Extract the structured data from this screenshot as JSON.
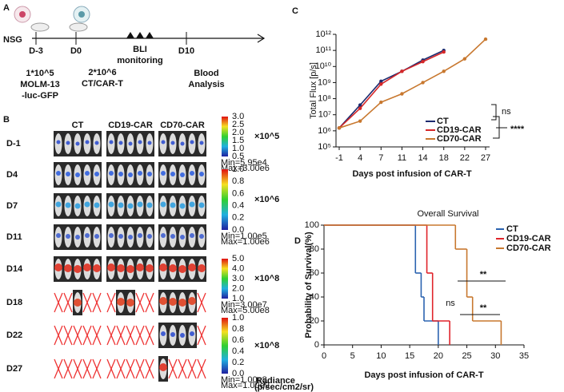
{
  "panel_a": {
    "label": "A",
    "strain": "NSG",
    "timepoints": [
      "D-3",
      "D0",
      "D10"
    ],
    "bli": "BLI",
    "monitoring": "monitoring",
    "tumor": [
      "1*10^5",
      "MOLM-13",
      "-luc-GFP"
    ],
    "cells": [
      "2*10^6",
      "CT/CAR-T"
    ],
    "endpoint": [
      "Blood",
      "Analysis"
    ]
  },
  "panel_b": {
    "label": "B",
    "groups": [
      "CT",
      "CD19-CAR",
      "CD70-CAR"
    ],
    "days": [
      "D-1",
      "D4",
      "D7",
      "D11",
      "D14",
      "D18",
      "D22",
      "D27"
    ],
    "scales": [
      {
        "ticks": [
          "3.0",
          "2.5",
          "2.0",
          "1.5",
          "1.0",
          "0.5"
        ],
        "multiplier": "×10^5",
        "min": "Min=5.95e4",
        "max": "Max=3.00e6"
      },
      {
        "ticks": [
          "1.0",
          "0.8",
          "0.6",
          "0.4",
          "0.2",
          "0.0"
        ],
        "multiplier": "×10^6",
        "min": "Min=1.00e5",
        "max": "Max=1.00e6"
      },
      {
        "ticks": [
          "5.0",
          "4.0",
          "3.0",
          "2.0",
          "1.0"
        ],
        "multiplier": "×10^8",
        "min": "Min=3.00e7",
        "max": "Max=5.00e8"
      },
      {
        "ticks": [
          "1.0",
          "0.8",
          "0.6",
          "0.4",
          "0.2",
          "0.0"
        ],
        "multiplier": "×10^8",
        "min": "Min=1.00e8",
        "max": "Max=1.00e9"
      }
    ],
    "radiance": [
      "Radiance",
      "(p/sec/cm2/sr)"
    ]
  },
  "chart_data": [
    {
      "panel": "C",
      "type": "line",
      "log_y": true,
      "ylabel": "Total Flux [p/s]",
      "xlabel": "Days post infusion of CAR-T",
      "categories": [
        "-1",
        "4",
        "7",
        "11",
        "14",
        "18",
        "22",
        "27"
      ],
      "ylim": [
        100000,
        1000000000000
      ],
      "yticks": [
        {
          "value": 100000,
          "label": "10⁵"
        },
        {
          "value": 1000000,
          "label": "10⁶"
        },
        {
          "value": 10000000,
          "label": "10⁷"
        },
        {
          "value": 100000000,
          "label": "10⁸"
        },
        {
          "value": 1000000000,
          "label": "10⁹"
        },
        {
          "value": 10000000000,
          "label": "10¹⁰"
        },
        {
          "value": 100000000000,
          "label": "10¹¹"
        },
        {
          "value": 1000000000000,
          "label": "10¹²"
        }
      ],
      "series": [
        {
          "name": "CT",
          "color": "#1c2a6e",
          "values": [
            1500000,
            40000000,
            1200000000,
            5000000000,
            25000000000,
            100000000000,
            null,
            null
          ]
        },
        {
          "name": "CD19-CAR",
          "color": "#d62728",
          "values": [
            1500000,
            25000000,
            800000000,
            5000000000,
            20000000000,
            80000000000,
            null,
            null
          ]
        },
        {
          "name": "CD70-CAR",
          "color": "#c8782f",
          "values": [
            1500000,
            4000000,
            60000000,
            200000000,
            1000000000,
            5000000000,
            30000000000,
            500000000000
          ]
        }
      ],
      "annotations": [
        "ns",
        "****"
      ]
    },
    {
      "panel": "D",
      "type": "step",
      "title": "Overall Survival",
      "ylabel": "Probability of Survival(%)",
      "xlabel": "Days post infusion of CAR-T",
      "xlim": [
        0,
        35
      ],
      "xticks": [
        0,
        5,
        10,
        15,
        20,
        25,
        30,
        35
      ],
      "ylim": [
        0,
        100
      ],
      "yticks": [
        0,
        20,
        40,
        60,
        80,
        100
      ],
      "series": [
        {
          "name": "CT",
          "color": "#2b63b0",
          "x": [
            0,
            16,
            17,
            17.5,
            20
          ],
          "values": [
            100,
            60,
            40,
            20,
            0
          ]
        },
        {
          "name": "CD19-CAR",
          "color": "#e0242b",
          "x": [
            0,
            18,
            19,
            22
          ],
          "values": [
            100,
            60,
            20,
            0
          ]
        },
        {
          "name": "CD70-CAR",
          "color": "#c8782f",
          "x": [
            0,
            23,
            25,
            26,
            31
          ],
          "values": [
            100,
            80,
            40,
            20,
            0
          ]
        }
      ],
      "annotations": [
        "ns",
        "**",
        "**"
      ]
    }
  ]
}
